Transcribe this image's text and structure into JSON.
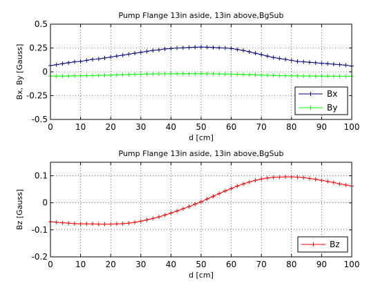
{
  "chart_data": [
    {
      "type": "line",
      "title": "Pump Flange 13in aside, 13in above,BgSub",
      "xlabel": "d [cm]",
      "ylabel": "Bx, By [Gauss]",
      "xlim": [
        0,
        100
      ],
      "ylim": [
        -0.5,
        0.5
      ],
      "xticks": [
        0,
        10,
        20,
        30,
        40,
        50,
        60,
        70,
        80,
        90,
        100
      ],
      "xtick_labels": [
        "0",
        "10",
        "20",
        "30",
        "40",
        "50",
        "60",
        "70",
        "80",
        "90",
        "100"
      ],
      "yticks": [
        -0.5,
        -0.25,
        0,
        0.25,
        0.5
      ],
      "ytick_labels": [
        "-0.5",
        "-0.25",
        "0",
        "0.25",
        "0.5"
      ],
      "grid": true,
      "legend_position": "bottom-right",
      "x": [
        0,
        2,
        4,
        6,
        8,
        10,
        12,
        14,
        16,
        18,
        20,
        22,
        24,
        26,
        28,
        30,
        32,
        34,
        36,
        38,
        40,
        42,
        44,
        46,
        48,
        50,
        52,
        54,
        56,
        58,
        60,
        62,
        64,
        66,
        68,
        70,
        72,
        74,
        76,
        78,
        80,
        82,
        84,
        86,
        88,
        90,
        92,
        94,
        96,
        98,
        100
      ],
      "series": [
        {
          "name": "Bx",
          "color": "#00007f",
          "values": [
            0.065,
            0.075,
            0.085,
            0.095,
            0.105,
            0.11,
            0.12,
            0.13,
            0.135,
            0.145,
            0.155,
            0.165,
            0.175,
            0.185,
            0.195,
            0.205,
            0.215,
            0.225,
            0.23,
            0.24,
            0.245,
            0.25,
            0.252,
            0.255,
            0.258,
            0.26,
            0.258,
            0.255,
            0.252,
            0.25,
            0.245,
            0.235,
            0.225,
            0.21,
            0.195,
            0.18,
            0.165,
            0.15,
            0.14,
            0.13,
            0.12,
            0.11,
            0.105,
            0.1,
            0.095,
            0.09,
            0.085,
            0.08,
            0.075,
            0.07,
            0.06
          ]
        },
        {
          "name": "By",
          "color": "#00ff00",
          "values": [
            -0.045,
            -0.045,
            -0.045,
            -0.044,
            -0.043,
            -0.042,
            -0.041,
            -0.04,
            -0.038,
            -0.036,
            -0.034,
            -0.032,
            -0.03,
            -0.028,
            -0.026,
            -0.025,
            -0.024,
            -0.023,
            -0.022,
            -0.022,
            -0.021,
            -0.021,
            -0.02,
            -0.02,
            -0.02,
            -0.02,
            -0.021,
            -0.022,
            -0.023,
            -0.024,
            -0.025,
            -0.026,
            -0.028,
            -0.03,
            -0.032,
            -0.034,
            -0.036,
            -0.038,
            -0.04,
            -0.041,
            -0.042,
            -0.043,
            -0.044,
            -0.044,
            -0.045,
            -0.045,
            -0.045,
            -0.046,
            -0.046,
            -0.046,
            -0.046
          ]
        }
      ]
    },
    {
      "type": "line",
      "title": "Pump Flange 13in aside, 13in above,BgSub",
      "xlabel": "d [cm]",
      "ylabel": "Bz [Gauss]",
      "xlim": [
        0,
        100
      ],
      "ylim": [
        -0.2,
        0.15
      ],
      "xticks": [
        0,
        10,
        20,
        30,
        40,
        50,
        60,
        70,
        80,
        90,
        100
      ],
      "xtick_labels": [
        "0",
        "10",
        "20",
        "30",
        "40",
        "50",
        "60",
        "70",
        "80",
        "90",
        "100"
      ],
      "yticks": [
        -0.2,
        -0.1,
        0,
        0.1
      ],
      "ytick_labels": [
        "-0.2",
        "-0.1",
        "0",
        "0.1"
      ],
      "grid": true,
      "legend_position": "bottom-right",
      "x": [
        0,
        2,
        4,
        6,
        8,
        10,
        12,
        14,
        16,
        18,
        20,
        22,
        24,
        26,
        28,
        30,
        32,
        34,
        36,
        38,
        40,
        42,
        44,
        46,
        48,
        50,
        52,
        54,
        56,
        58,
        60,
        62,
        64,
        66,
        68,
        70,
        72,
        74,
        76,
        78,
        80,
        82,
        84,
        86,
        88,
        90,
        92,
        94,
        96,
        98,
        100
      ],
      "series": [
        {
          "name": "Bz",
          "color": "#ff0000",
          "values": [
            -0.07,
            -0.072,
            -0.074,
            -0.075,
            -0.077,
            -0.078,
            -0.078,
            -0.078,
            -0.079,
            -0.079,
            -0.079,
            -0.078,
            -0.077,
            -0.075,
            -0.072,
            -0.068,
            -0.063,
            -0.058,
            -0.052,
            -0.045,
            -0.038,
            -0.03,
            -0.022,
            -0.014,
            -0.005,
            0.004,
            0.014,
            0.024,
            0.034,
            0.044,
            0.053,
            0.062,
            0.07,
            0.077,
            0.083,
            0.088,
            0.092,
            0.094,
            0.095,
            0.096,
            0.096,
            0.095,
            0.093,
            0.09,
            0.087,
            0.083,
            0.079,
            0.075,
            0.07,
            0.066,
            0.062
          ]
        }
      ]
    }
  ]
}
